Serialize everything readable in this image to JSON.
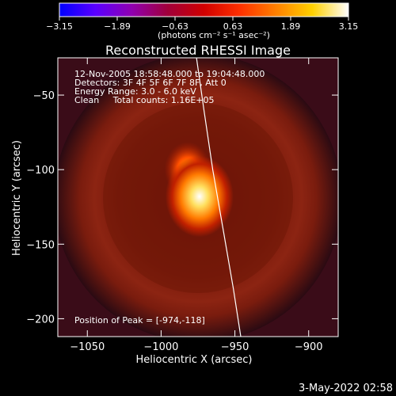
{
  "chart_data": {
    "type": "heatmap",
    "title": "Reconstructed RHESSI Image",
    "xlabel": "Heliocentric X (arcsec)",
    "ylabel": "Heliocentric Y (arcsec)",
    "xlim": [
      -1070,
      -880
    ],
    "ylim": [
      -212,
      -25
    ],
    "x_ticks": [
      -1050,
      -1000,
      -950,
      -900
    ],
    "y_ticks": [
      -50,
      -100,
      -150,
      -200
    ],
    "x_tick_labels": [
      "−1050",
      "−1000",
      "−950",
      "−900"
    ],
    "y_tick_labels": [
      "−50",
      "−100",
      "−150",
      "−200"
    ],
    "colorbar": {
      "range": [
        -3.15,
        3.15
      ],
      "tick_values": [
        -3.15,
        -1.89,
        -0.63,
        0.63,
        1.89,
        3.15
      ],
      "tick_labels": [
        "−3.15",
        "−1.89",
        "−0.63",
        "0.63",
        "1.89",
        "3.15"
      ],
      "colors": [
        "#0000ff",
        "#5a00ff",
        "#9000b0",
        "#a0003a",
        "#d00000",
        "#ff3000",
        "#ff8000",
        "#ffd000",
        "#ffffff"
      ],
      "label": "(photons cm⁻² s⁻¹ asec⁻²)"
    },
    "annotations": [
      "12-Nov-2005 18:58:48.000 to 19:04:48.000",
      "Detectors: 3F 4F 5F 6F 7F 8F, Att 0",
      "Energy Range: 3.0 - 6.0 keV",
      "Clean     Total counts: 1.16E+05",
      "Position of Peak = [-974,-118]"
    ],
    "sources": [
      {
        "x": -974,
        "y": -118,
        "intensity": 3.15
      },
      {
        "x": -982,
        "y": -100,
        "intensity": 2.0
      }
    ],
    "limb_curve": [
      {
        "x": -976,
        "y": -25
      },
      {
        "x": -971,
        "y": -60
      },
      {
        "x": -965,
        "y": -100
      },
      {
        "x": -958,
        "y": -140
      },
      {
        "x": -951,
        "y": -180
      },
      {
        "x": -946,
        "y": -212
      }
    ]
  },
  "timestamp": "3-May-2022 02:58"
}
